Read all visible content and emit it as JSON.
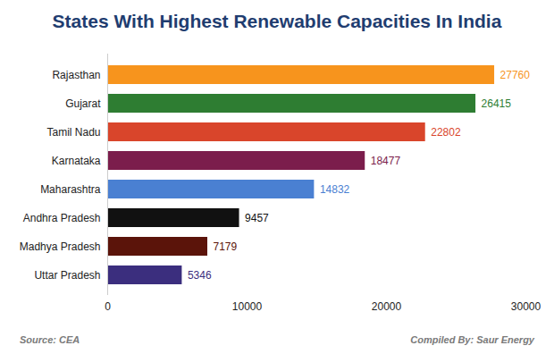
{
  "chart_data": {
    "type": "bar",
    "title": "States With Highest Renewable Capacities In India",
    "orientation": "horizontal",
    "categories": [
      "Rajasthan",
      "Gujarat",
      "Tamil Nadu",
      "Karnataka",
      "Maharashtra",
      "Andhra Pradesh",
      "Madhya Pradesh",
      "Uttar Pradesh"
    ],
    "values": [
      27760,
      26415,
      22802,
      18477,
      14832,
      9457,
      7179,
      5346
    ],
    "colors": [
      "#f7941d",
      "#2e7d32",
      "#d9452b",
      "#7b1d4c",
      "#4a80d2",
      "#111111",
      "#5b140a",
      "#3b2e7e"
    ],
    "xlim": [
      0,
      30000
    ],
    "xticks": [
      0,
      10000,
      20000,
      30000
    ],
    "grid": false,
    "data_labels": true,
    "source": "Source: CEA",
    "compiled_by": "Compiled By: Saur Energy"
  }
}
